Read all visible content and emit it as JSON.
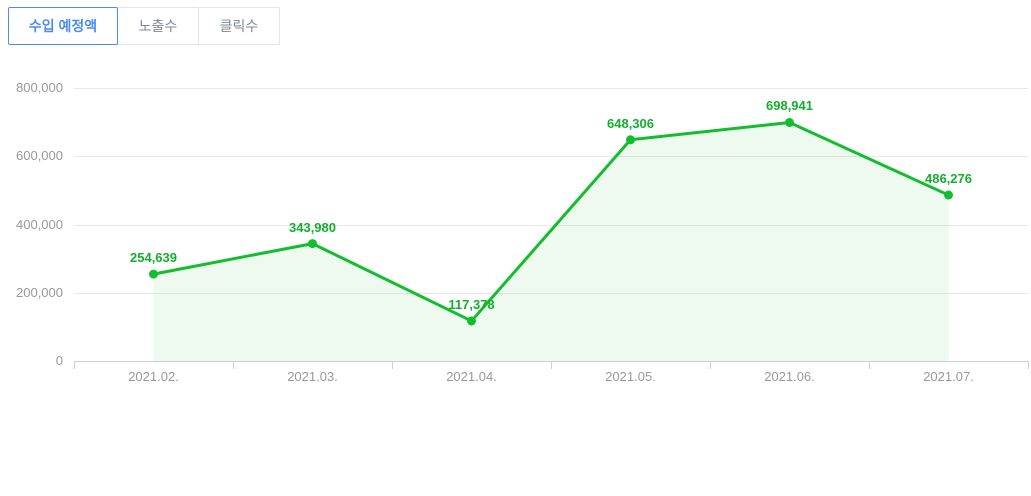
{
  "tabs": [
    {
      "label": "수입 예정액",
      "active": true
    },
    {
      "label": "노출수",
      "active": false
    },
    {
      "label": "클릭수",
      "active": false
    }
  ],
  "accent_color": "#4b8cf6",
  "chart_data": {
    "type": "line",
    "title": "",
    "xlabel": "",
    "ylabel": "",
    "categories": [
      "2021.02.",
      "2021.03.",
      "2021.04.",
      "2021.05.",
      "2021.06.",
      "2021.07."
    ],
    "values": [
      254639,
      343980,
      117378,
      648306,
      698941,
      486276
    ],
    "value_labels": [
      "254,639",
      "343,980",
      "117,378",
      "648,306",
      "698,941",
      "486,276"
    ],
    "ylim": [
      0,
      800000
    ],
    "y_ticks": [
      0,
      200000,
      400000,
      600000,
      800000
    ],
    "y_tick_labels": [
      "0",
      "200,000",
      "400,000",
      "600,000",
      "800,000"
    ],
    "grid": true,
    "legend": "none",
    "area_fill": true,
    "line_color": "#12bd2e",
    "area_color": "rgba(18,189,46,0.07)",
    "label_color": "#10b02c",
    "axis_color": "#c9d0da",
    "grid_color": "#e8e8e8",
    "tick_text_color": "#999999"
  }
}
